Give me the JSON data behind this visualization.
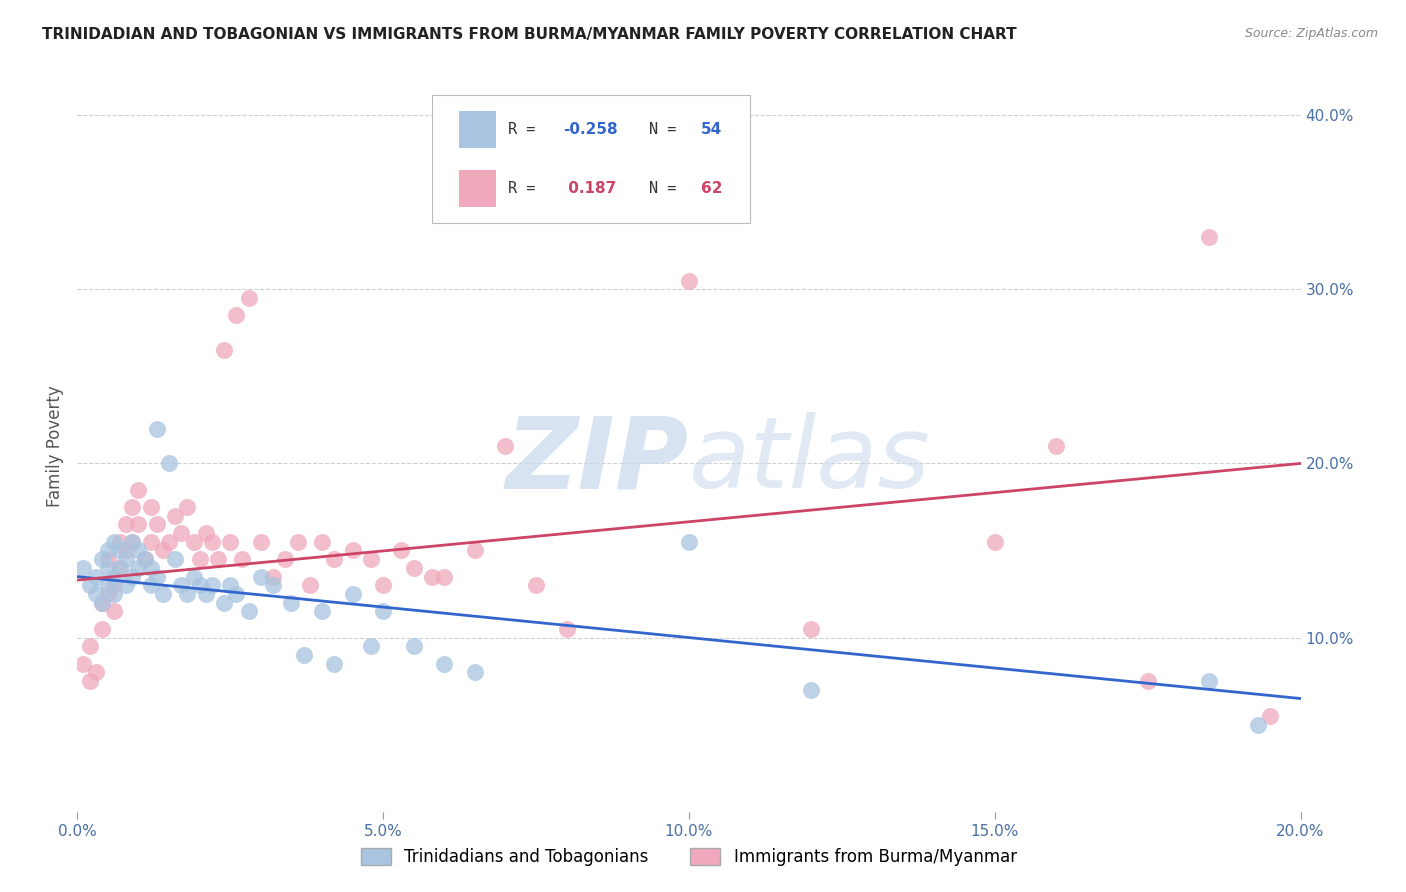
{
  "title": "TRINIDADIAN AND TOBAGONIAN VS IMMIGRANTS FROM BURMA/MYANMAR FAMILY POVERTY CORRELATION CHART",
  "source": "Source: ZipAtlas.com",
  "ylabel": "Family Poverty",
  "xlim": [
    0.0,
    0.2
  ],
  "ylim": [
    0.0,
    0.42
  ],
  "xticks": [
    0.0,
    0.05,
    0.1,
    0.15,
    0.2
  ],
  "xtick_labels": [
    "0.0%",
    "5.0%",
    "10.0%",
    "15.0%",
    "20.0%"
  ],
  "yticks": [
    0.0,
    0.1,
    0.2,
    0.3,
    0.4
  ],
  "ytick_labels_right": [
    "",
    "10.0%",
    "20.0%",
    "30.0%",
    "40.0%"
  ],
  "blue_color": "#a8c4e0",
  "pink_color": "#f0a8bc",
  "blue_line_color": "#3366cc",
  "pink_line_color": "#cc4466",
  "blue_R": -0.258,
  "blue_N": 54,
  "pink_R": 0.187,
  "pink_N": 62,
  "legend_blue_label": "Trinidadians and Tobagonians",
  "legend_pink_label": "Immigrants from Burma/Myanmar",
  "blue_x": [
    0.001,
    0.002,
    0.003,
    0.003,
    0.004,
    0.004,
    0.005,
    0.005,
    0.005,
    0.006,
    0.006,
    0.006,
    0.007,
    0.007,
    0.008,
    0.008,
    0.009,
    0.009,
    0.01,
    0.01,
    0.011,
    0.012,
    0.012,
    0.013,
    0.013,
    0.014,
    0.015,
    0.016,
    0.017,
    0.018,
    0.019,
    0.02,
    0.021,
    0.022,
    0.024,
    0.025,
    0.026,
    0.028,
    0.03,
    0.032,
    0.035,
    0.037,
    0.04,
    0.042,
    0.045,
    0.048,
    0.05,
    0.055,
    0.06,
    0.065,
    0.1,
    0.12,
    0.185,
    0.193
  ],
  "blue_y": [
    0.14,
    0.13,
    0.135,
    0.125,
    0.145,
    0.12,
    0.15,
    0.14,
    0.13,
    0.155,
    0.135,
    0.125,
    0.15,
    0.14,
    0.145,
    0.13,
    0.155,
    0.135,
    0.15,
    0.14,
    0.145,
    0.14,
    0.13,
    0.22,
    0.135,
    0.125,
    0.2,
    0.145,
    0.13,
    0.125,
    0.135,
    0.13,
    0.125,
    0.13,
    0.12,
    0.13,
    0.125,
    0.115,
    0.135,
    0.13,
    0.12,
    0.09,
    0.115,
    0.085,
    0.125,
    0.095,
    0.115,
    0.095,
    0.085,
    0.08,
    0.155,
    0.07,
    0.075,
    0.05
  ],
  "pink_x": [
    0.001,
    0.002,
    0.002,
    0.003,
    0.004,
    0.004,
    0.005,
    0.005,
    0.006,
    0.006,
    0.007,
    0.007,
    0.008,
    0.008,
    0.009,
    0.009,
    0.01,
    0.01,
    0.011,
    0.012,
    0.012,
    0.013,
    0.014,
    0.015,
    0.016,
    0.017,
    0.018,
    0.019,
    0.02,
    0.021,
    0.022,
    0.023,
    0.024,
    0.025,
    0.026,
    0.027,
    0.028,
    0.03,
    0.032,
    0.034,
    0.036,
    0.038,
    0.04,
    0.042,
    0.045,
    0.048,
    0.05,
    0.053,
    0.055,
    0.058,
    0.06,
    0.065,
    0.07,
    0.075,
    0.08,
    0.1,
    0.12,
    0.15,
    0.16,
    0.175,
    0.185,
    0.195
  ],
  "pink_y": [
    0.085,
    0.095,
    0.075,
    0.08,
    0.12,
    0.105,
    0.145,
    0.125,
    0.13,
    0.115,
    0.155,
    0.14,
    0.165,
    0.15,
    0.175,
    0.155,
    0.185,
    0.165,
    0.145,
    0.175,
    0.155,
    0.165,
    0.15,
    0.155,
    0.17,
    0.16,
    0.175,
    0.155,
    0.145,
    0.16,
    0.155,
    0.145,
    0.265,
    0.155,
    0.285,
    0.145,
    0.295,
    0.155,
    0.135,
    0.145,
    0.155,
    0.13,
    0.155,
    0.145,
    0.15,
    0.145,
    0.13,
    0.15,
    0.14,
    0.135,
    0.135,
    0.15,
    0.21,
    0.13,
    0.105,
    0.305,
    0.105,
    0.155,
    0.21,
    0.075,
    0.33,
    0.055
  ],
  "background_color": "#ffffff",
  "grid_color": "#d0d0d0",
  "watermark": "ZIPatlas"
}
